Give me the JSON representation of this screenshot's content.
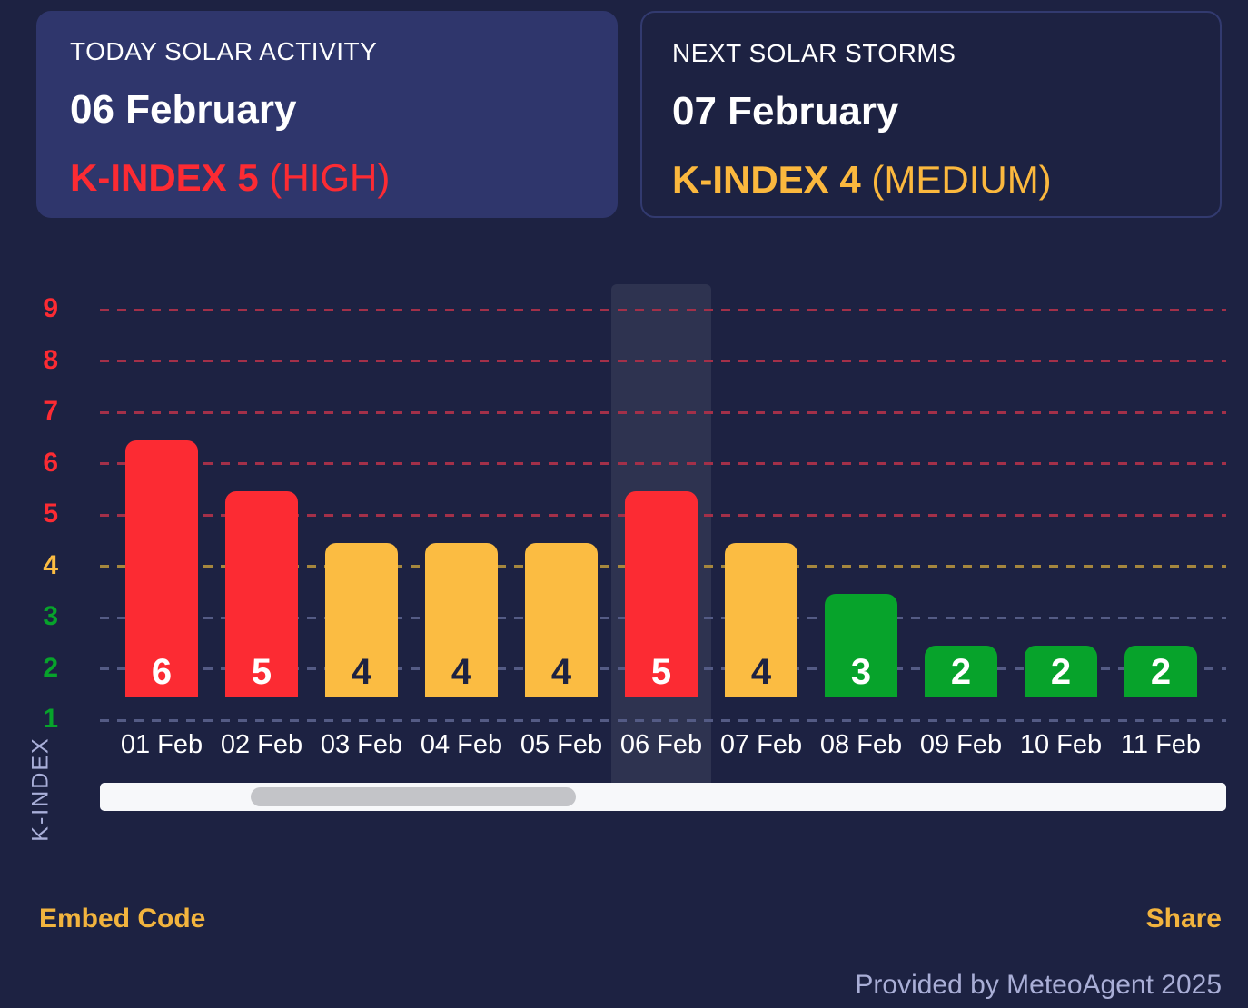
{
  "cards": {
    "today": {
      "title": "TODAY SOLAR ACTIVITY",
      "date": "06 February",
      "kindex": "K-INDEX 5",
      "severity": "(HIGH)",
      "status_color": "#fc2b33"
    },
    "next": {
      "title": "NEXT SOLAR STORMS",
      "date": "07 February",
      "kindex": "K-INDEX 4",
      "severity": "(MEDIUM)",
      "status_color": "#fbb83e"
    }
  },
  "chart_data": {
    "type": "bar",
    "title": "",
    "xlabel": "",
    "ylabel": "K-INDEX",
    "categories": [
      "01 Feb",
      "02 Feb",
      "03 Feb",
      "04 Feb",
      "05 Feb",
      "06 Feb",
      "07 Feb",
      "08 Feb",
      "09 Feb",
      "10 Feb",
      "11 Feb"
    ],
    "values": [
      6,
      5,
      4,
      4,
      4,
      5,
      4,
      3,
      2,
      2,
      2
    ],
    "yticks": [
      1,
      2,
      3,
      4,
      5,
      6,
      7,
      8,
      9
    ],
    "ylim": [
      1,
      9
    ],
    "grid": true,
    "legend": false,
    "highlighted_category": "06 Feb",
    "levels": {
      "high_min": 5,
      "medium": 4
    },
    "colors": {
      "high": "#fc2b33",
      "medium": "#fbbc42",
      "low": "#07a32b",
      "grid_high": "#a33049",
      "grid_medium": "#a5873e",
      "grid_low": "#545b85",
      "bar_label_on_medium": "#1d2242",
      "bar_label_on_other": "#ffffff",
      "accent_link": "#f2b43e"
    }
  },
  "footer": {
    "embed_code": "Embed Code",
    "share": "Share",
    "provided": "Provided by MeteoAgent 2025"
  }
}
